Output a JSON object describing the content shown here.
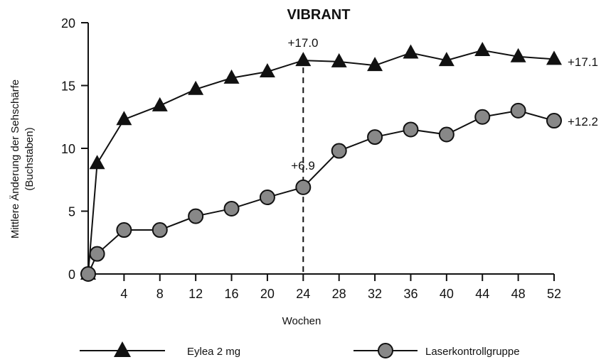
{
  "chart_data": {
    "type": "line",
    "title": "VIBRANT",
    "xlabel": "Wochen",
    "ylabel": [
      "Mittlere Änderung der Sehschärfe",
      "(Buchstaben)"
    ],
    "xlim": [
      0,
      52
    ],
    "ylim": [
      0,
      20
    ],
    "x_ticks": [
      "4",
      "8",
      "12",
      "16",
      "20",
      "24",
      "28",
      "32",
      "36",
      "40",
      "44",
      "48",
      "52"
    ],
    "x_tick_values": [
      4,
      8,
      12,
      16,
      20,
      24,
      28,
      32,
      36,
      40,
      44,
      48,
      52
    ],
    "y_ticks": [
      "0",
      "5",
      "10",
      "15",
      "20"
    ],
    "y_tick_values": [
      0,
      5,
      10,
      15,
      20
    ],
    "series": [
      {
        "name": "Eylea 2 mg",
        "marker": "triangle",
        "color": "#111111",
        "x": [
          0,
          1,
          4,
          8,
          12,
          16,
          20,
          24,
          28,
          32,
          36,
          40,
          44,
          48,
          52
        ],
        "y": [
          0,
          8.8,
          12.3,
          13.4,
          14.7,
          15.6,
          16.1,
          17.0,
          16.9,
          16.6,
          17.6,
          17.0,
          17.8,
          17.3,
          17.1
        ]
      },
      {
        "name": "Laserkontrollgruppe",
        "marker": "circle",
        "color": "#888888",
        "x": [
          0,
          1,
          4,
          8,
          12,
          16,
          20,
          24,
          28,
          32,
          36,
          40,
          44,
          48,
          52
        ],
        "y": [
          0,
          1.6,
          3.5,
          3.5,
          4.6,
          5.2,
          6.1,
          6.9,
          9.8,
          10.9,
          11.5,
          11.1,
          12.5,
          13.0,
          12.2
        ]
      }
    ],
    "annotations": {
      "eylea_wk24": "+17.0",
      "laser_wk24": "+6.9",
      "eylea_end": "+17.1",
      "laser_end": "+12.2"
    },
    "reference_line_x": 24,
    "grid": false,
    "legend_position": "bottom"
  }
}
